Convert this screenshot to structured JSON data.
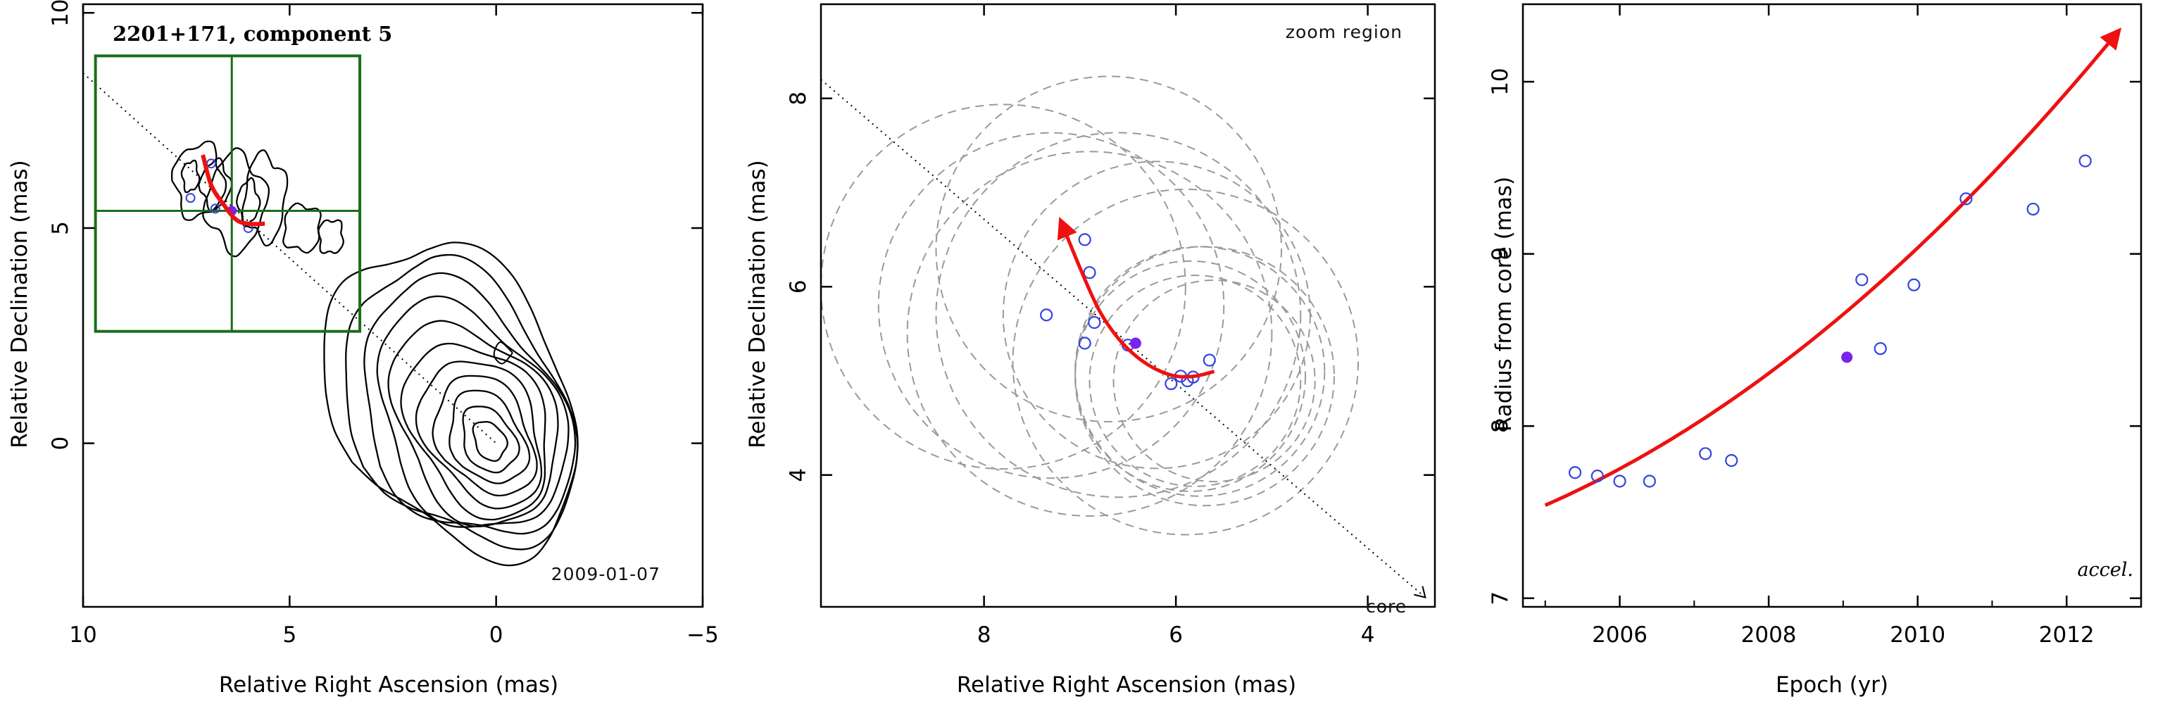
{
  "colors": {
    "fit_curve": "#ee1111",
    "epoch_marker": "#7a22ee",
    "open_points": "#3344dd",
    "zoom_box": "#1a6e1a",
    "uncertainty_circles": "#9a9a9a",
    "contours": "#000000"
  },
  "chart_data": [
    {
      "type": "contour",
      "title": "2201+171, component 5",
      "epoch_label": "2009-01-07",
      "xlabel": "Relative Right Ascension (mas)",
      "ylabel": "Relative Declination (mas)",
      "xlim": [
        10,
        -5
      ],
      "ylim": [
        -3.8,
        10.2
      ],
      "x_ticks": [
        "10",
        "5",
        "0",
        "−5"
      ],
      "y_ticks": [
        "0",
        "5",
        "10"
      ],
      "zoom_box": {
        "x_range": [
          9.7,
          3.3
        ],
        "y_range": [
          2.6,
          9.0
        ],
        "crosshair": [
          6.4,
          5.4
        ]
      },
      "jet_axis_line": [
        [
          10,
          8.6
        ],
        [
          0,
          0
        ]
      ],
      "fit_track": [
        [
          7.1,
          6.7
        ],
        [
          6.9,
          6.0
        ],
        [
          6.6,
          5.55
        ],
        [
          6.3,
          5.2
        ],
        [
          6.0,
          5.1
        ],
        [
          5.6,
          5.1
        ]
      ],
      "open_points": [
        [
          7.4,
          5.7
        ],
        [
          6.8,
          5.45
        ],
        [
          6.9,
          6.5
        ],
        [
          6.0,
          5.0
        ]
      ],
      "filled_points": [
        [
          6.4,
          5.4
        ]
      ]
    },
    {
      "type": "scatter",
      "annotation": "zoom region",
      "core_label": "core",
      "xlabel": "Relative Right Ascension (mas)",
      "ylabel": "Relative Declination (mas)",
      "xlim": [
        9.7,
        3.3
      ],
      "ylim": [
        2.6,
        9.0
      ],
      "x_ticks": [
        "8",
        "6",
        "4"
      ],
      "y_ticks": [
        "4",
        "6",
        "8"
      ],
      "open_points": [
        [
          7.35,
          5.7
        ],
        [
          6.95,
          6.5
        ],
        [
          6.9,
          6.15
        ],
        [
          6.95,
          5.4
        ],
        [
          6.85,
          5.62
        ],
        [
          6.5,
          5.38
        ],
        [
          6.05,
          4.97
        ],
        [
          5.95,
          5.05
        ],
        [
          5.88,
          5.0
        ],
        [
          5.82,
          5.04
        ],
        [
          5.65,
          5.22
        ]
      ],
      "filled_points": [
        [
          6.42,
          5.4
        ]
      ],
      "fit_track": [
        [
          7.2,
          6.7
        ],
        [
          7.0,
          6.2
        ],
        [
          6.8,
          5.75
        ],
        [
          6.6,
          5.45
        ],
        [
          6.4,
          5.25
        ],
        [
          6.2,
          5.12
        ],
        [
          6.0,
          5.05
        ],
        [
          5.8,
          5.05
        ],
        [
          5.6,
          5.1
        ]
      ],
      "uncertainty_circles": [
        [
          7.8,
          6.0,
          1.9
        ],
        [
          7.3,
          5.8,
          1.8
        ],
        [
          6.7,
          6.4,
          1.8
        ],
        [
          6.9,
          5.5,
          1.9
        ],
        [
          6.6,
          5.7,
          1.9
        ],
        [
          6.2,
          5.7,
          1.6
        ],
        [
          5.9,
          5.2,
          1.8
        ],
        [
          5.75,
          5.1,
          1.3
        ],
        [
          5.8,
          5.0,
          1.1
        ],
        [
          5.85,
          5.05,
          1.2
        ],
        [
          5.7,
          5.05,
          1.35
        ],
        [
          5.6,
          5.0,
          1.05
        ]
      ],
      "jet_axis_line": [
        [
          9.7,
          8.2
        ],
        [
          3.4,
          2.7
        ]
      ]
    },
    {
      "type": "scatter",
      "annotation": "accel.",
      "xlabel": "Epoch (yr)",
      "ylabel": "Radius from core (mas)",
      "xlim": [
        2004.7,
        2013.0
      ],
      "ylim": [
        6.95,
        10.45
      ],
      "x_ticks": [
        "2006",
        "2008",
        "2010",
        "2012"
      ],
      "y_ticks": [
        "7",
        "8",
        "9",
        "10"
      ],
      "open_points": [
        [
          2005.4,
          7.73
        ],
        [
          2005.7,
          7.71
        ],
        [
          2006.0,
          7.68
        ],
        [
          2006.4,
          7.68
        ],
        [
          2007.15,
          7.84
        ],
        [
          2007.5,
          7.8
        ],
        [
          2009.25,
          8.85
        ],
        [
          2009.5,
          8.45
        ],
        [
          2009.95,
          8.82
        ],
        [
          2010.65,
          9.32
        ],
        [
          2011.55,
          9.26
        ],
        [
          2012.25,
          9.54
        ]
      ],
      "filled_points": [
        [
          2009.05,
          8.4
        ]
      ],
      "fit_curve": {
        "x_start": 2005.0,
        "x_end": 2012.75,
        "coefficients": [
          7.54,
          0.19,
          0.0218
        ]
      }
    }
  ]
}
